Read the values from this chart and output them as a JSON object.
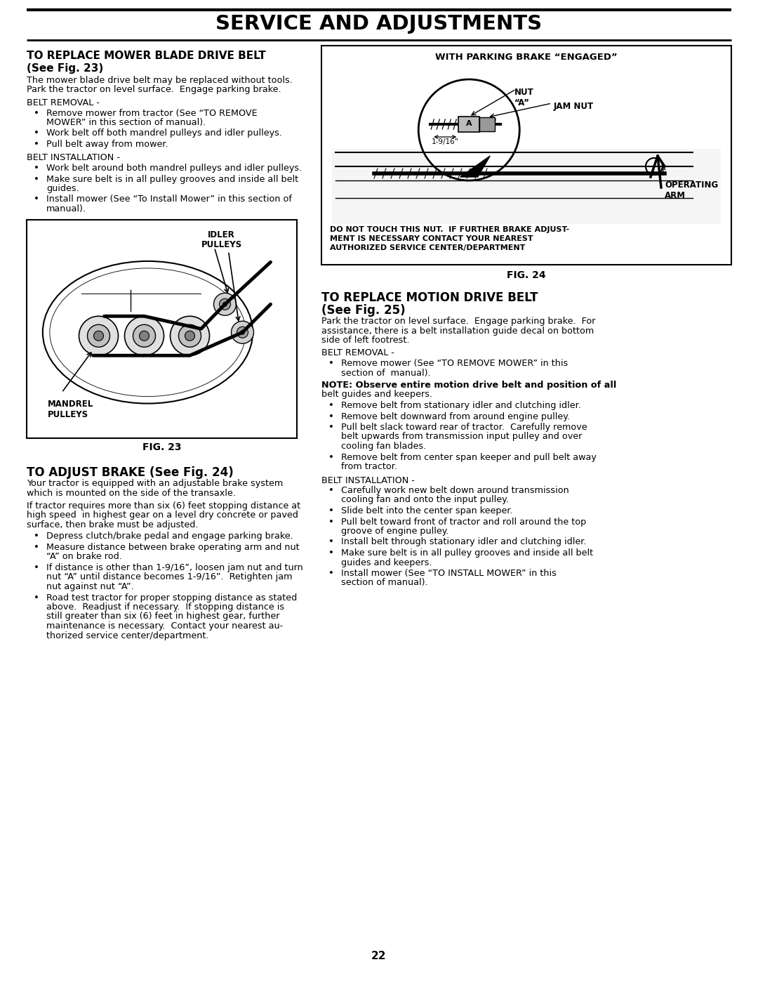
{
  "page_number": "22",
  "title": "SERVICE AND ADJUSTMENTS",
  "bg_color": "#ffffff",
  "s1_h1": "TO REPLACE MOWER BLADE DRIVE BELT",
  "s1_h2": "(See Fig. 23)",
  "s1_intro": [
    "The mower blade drive belt may be replaced without tools.",
    "Park the tractor on level surface.  Engage parking brake."
  ],
  "s1_br_label": "BELT REMOVAL -",
  "s1_br_bullets": [
    [
      "Remove mower from tractor (See “TO REMOVE",
      "MOWER” in this section of manual)."
    ],
    [
      "Work belt off both mandrel pulleys and idler pulleys."
    ],
    [
      "Pull belt away from mower."
    ]
  ],
  "s1_bi_label": "BELT INSTALLATION -",
  "s1_bi_bullets": [
    [
      "Work belt around both mandrel pulleys and idler pulleys."
    ],
    [
      "Make sure belt is in all pulley grooves and inside all belt",
      "guides."
    ],
    [
      "Install mower (See “To Install Mower” in this section of",
      "manual)."
    ]
  ],
  "fig23_caption": "FIG. 23",
  "fig23_idler": "IDLER\nPULLEYS",
  "fig23_mandrel": "MANDREL\nPULLEYS",
  "s2_h1": "TO ADJUST BRAKE (See Fig. 24)",
  "s2_intro1": [
    "Your tractor is equipped with an adjustable brake system",
    "which is mounted on the side of the transaxle."
  ],
  "s2_intro2": [
    "If tractor requires more than six (6) feet stopping distance at",
    "high speed  in highest gear on a level dry concrete or paved",
    "surface, then brake must be adjusted."
  ],
  "s2_bullets": [
    [
      "Depress clutch/brake pedal and engage parking brake."
    ],
    [
      "Measure distance between brake operating arm and nut",
      "“A” on brake rod."
    ],
    [
      "If distance is other than 1-9/16”, loosen jam nut and turn",
      "nut “A” until distance becomes 1-9/16”.  Retighten jam",
      "nut against nut “A”."
    ],
    [
      "Road test tractor for proper stopping distance as stated",
      "above.  Readjust if necessary.  If stopping distance is",
      "still greater than six (6) feet in highest gear, further",
      "maintenance is necessary.  Contact your nearest au-",
      "thorized service center/department."
    ]
  ],
  "fig24_title": "WITH PARKING BRAKE “ENGAGED”",
  "fig24_nut": "NUT\n“A”",
  "fig24_jam": "JAM NUT",
  "fig24_dim": "1-9/16”",
  "fig24_arm": "OPERATING\nARM",
  "fig24_warn": [
    "DO NOT TOUCH THIS NUT.  IF FURTHER BRAKE ADJUST-",
    "MENT IS NECESSARY CONTACT YOUR NEAREST",
    "AUTHORIZED SERVICE CENTER/DEPARTMENT"
  ],
  "fig24_caption": "FIG. 24",
  "s3_h1": "TO REPLACE MOTION DRIVE BELT",
  "s3_h2": "(See Fig. 25)",
  "s3_intro": [
    "Park the tractor on level surface.  Engage parking brake.  For",
    "assistance, there is a belt installation guide decal on bottom",
    "side of left footrest."
  ],
  "s3_br_label": "BELT REMOVAL -",
  "s3_br_b1": [
    [
      "Remove mower (See “TO REMOVE MOWER” in this",
      "section of  manual)."
    ]
  ],
  "s3_note1": "NOTE: Observe entire motion drive belt and position of all",
  "s3_note2": "belt guides and keepers.",
  "s3_br_b2": [
    [
      "Remove belt from stationary idler and clutching idler."
    ],
    [
      "Remove belt downward from around engine pulley."
    ],
    [
      "Pull belt slack toward rear of tractor.  Carefully remove",
      "belt upwards from transmission input pulley and over",
      "cooling fan blades."
    ],
    [
      "Remove belt from center span keeper and pull belt away",
      "from tractor."
    ]
  ],
  "s3_bi_label": "BELT INSTALLATION -",
  "s3_bi_bullets": [
    [
      "Carefully work new belt down around transmission",
      "cooling fan and onto the input pulley."
    ],
    [
      "Slide belt into the center span keeper."
    ],
    [
      "Pull belt toward front of tractor and roll around the top",
      "groove of engine pulley."
    ],
    [
      "Install belt through stationary idler and clutching idler."
    ],
    [
      "Make sure belt is in all pulley grooves and inside all belt",
      "guides and keepers."
    ],
    [
      "Install mower (See “TO INSTALL MOWER” in this",
      "section of manual)."
    ]
  ]
}
